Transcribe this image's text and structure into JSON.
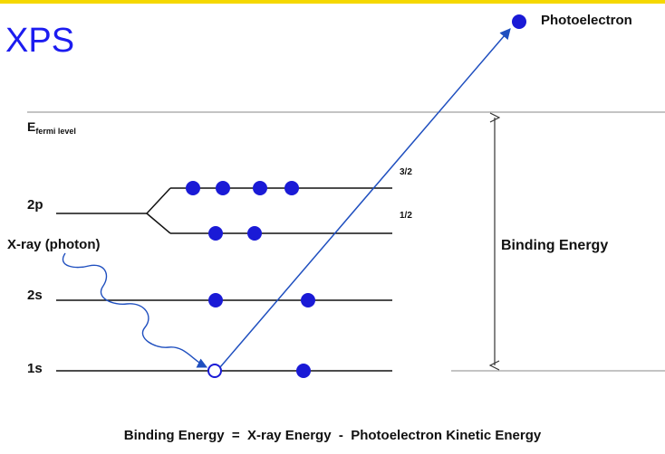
{
  "title": "XPS",
  "labels": {
    "fermi_main": "E",
    "fermi_sub": "fermi level",
    "level_2p": "2p",
    "level_2s": "2s",
    "level_1s": "1s",
    "split_32": "3/2",
    "split_12": "1/2",
    "xray": "X-ray (photon)",
    "binding": "Binding Energy",
    "photoelectron": "Photoelectron"
  },
  "formula": "Binding Energy  =  X-ray Energy  -  Photoelectron Kinetic Energy",
  "colors": {
    "title": "#1c1cf0",
    "electron": "#1a1ad6",
    "accent_bar": "#f5d800",
    "line": "#111111",
    "ray": "#1f4fbf"
  }
}
